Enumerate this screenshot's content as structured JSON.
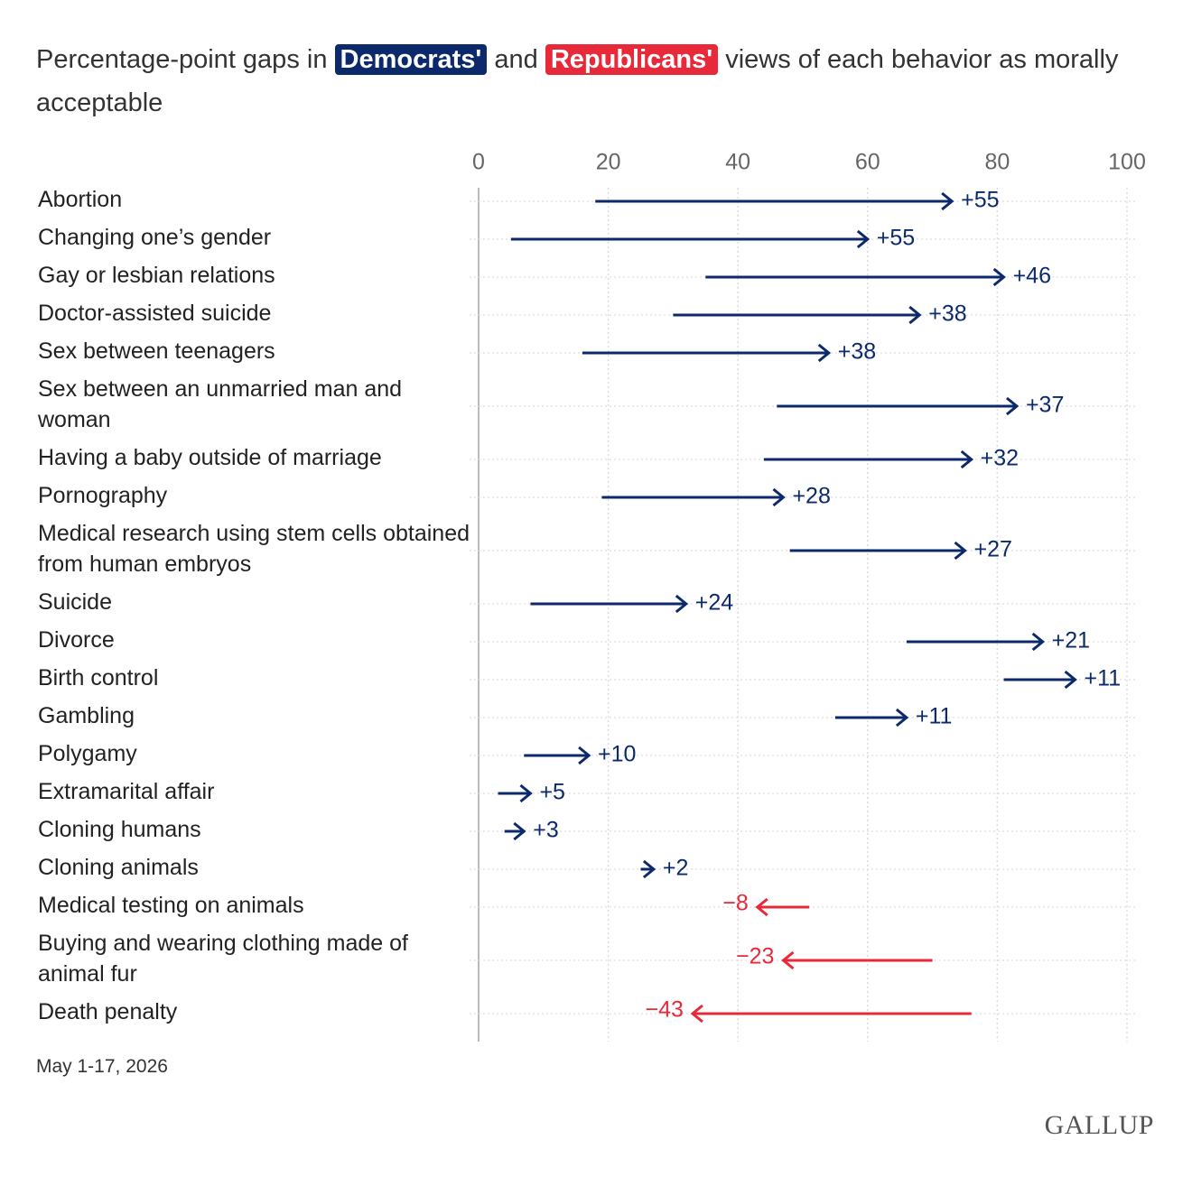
{
  "chart_data": {
    "type": "arrow",
    "title_parts": [
      "Percentage-point gaps in",
      "and",
      "views of each behavior as morally acceptable"
    ],
    "categories": [
      "Abortion",
      "Changing one’s gender",
      "Gay or lesbian relations",
      "Doctor-assisted suicide",
      "Sex between teenagers",
      "Sex between an unmarried man and woman",
      "Having a baby outside of marriage",
      "Pornography",
      "Medical research using stem cells obtained from human embryos",
      "Suicide",
      "Divorce",
      "Birth control",
      "Gambling",
      "Polygamy",
      "Extramarital affair",
      "Cloning humans",
      "Cloning animals",
      "Medical testing on animals",
      "Buying and wearing clothing made of animal fur",
      "Death penalty"
    ],
    "series": [
      {
        "name": "Democrats'",
        "color": "#0c2a6b",
        "values": [
          73,
          60,
          81,
          68,
          54,
          83,
          76,
          47,
          75,
          32,
          87,
          92,
          66,
          17,
          8,
          7,
          27,
          43,
          47,
          33
        ]
      },
      {
        "name": "Republicans'",
        "color": "#e8293a",
        "values": [
          18,
          5,
          35,
          30,
          16,
          46,
          44,
          19,
          48,
          8,
          66,
          81,
          55,
          7,
          3,
          4,
          25,
          51,
          70,
          76
        ]
      }
    ],
    "gaps": {
      "values": [
        55,
        55,
        46,
        38,
        38,
        37,
        32,
        28,
        27,
        24,
        21,
        11,
        11,
        10,
        5,
        3,
        2,
        -8,
        -23,
        -43
      ],
      "value_labels": [
        "+55",
        "+55",
        "+46",
        "+38",
        "+38",
        "+37",
        "+32",
        "+28",
        "+27",
        "+24",
        "+21",
        "+11",
        "+11",
        "+10",
        "+5",
        "+3",
        "+2",
        "−8",
        "−23",
        "−43"
      ]
    },
    "xlim": [
      0,
      100
    ],
    "xticks": [
      0,
      20,
      40,
      60,
      80,
      100
    ],
    "grid": true,
    "note": "May 1-17, 2026",
    "logo": "GALLUP"
  }
}
